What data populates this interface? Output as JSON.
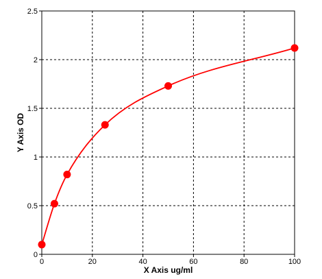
{
  "chart_data": {
    "type": "line",
    "title": "",
    "xlabel": "X Axis ug/ml",
    "ylabel": "Y Axis OD",
    "xlim": [
      0,
      100
    ],
    "ylim": [
      0,
      2.5
    ],
    "x_ticks": [
      "0",
      "20",
      "40",
      "60",
      "80",
      "100"
    ],
    "y_ticks": [
      "0",
      "0.5",
      "1",
      "1.5",
      "2",
      "2.5"
    ],
    "grid": true,
    "legend": "none",
    "series": [
      {
        "color": "#ff0000",
        "marker": "circle",
        "points": [
          {
            "x": 0,
            "y": 0.1
          },
          {
            "x": 5,
            "y": 0.52
          },
          {
            "x": 10,
            "y": 0.82
          },
          {
            "x": 25,
            "y": 1.33
          },
          {
            "x": 50,
            "y": 1.73
          },
          {
            "x": 100,
            "y": 2.12
          }
        ],
        "fit_curve": {
          "type": "four_parameter_logistic",
          "visible": true
        }
      }
    ]
  }
}
